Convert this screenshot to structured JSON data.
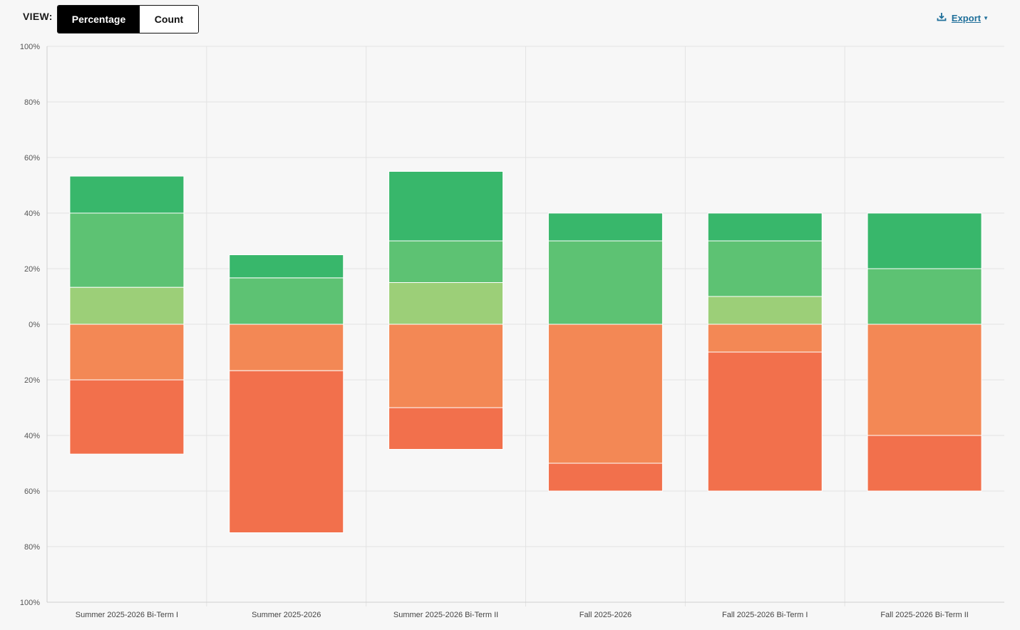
{
  "toolbar": {
    "view_label": "VIEW:",
    "options": [
      "Percentage",
      "Count"
    ],
    "selected": "Percentage",
    "export_label": "Export",
    "export_icon": "download-icon",
    "export_color": "#1f6f9a"
  },
  "chart_data": {
    "type": "bar",
    "stacked": true,
    "diverging": true,
    "title": "",
    "xlabel": "",
    "ylabel": "",
    "ylim": [
      -100,
      100
    ],
    "y_ticks": [
      {
        "value": 100,
        "label": "100%"
      },
      {
        "value": 80,
        "label": "80%"
      },
      {
        "value": 60,
        "label": "60%"
      },
      {
        "value": 40,
        "label": "40%"
      },
      {
        "value": 20,
        "label": "20%"
      },
      {
        "value": 0,
        "label": "0%"
      },
      {
        "value": -20,
        "label": "20%"
      },
      {
        "value": -40,
        "label": "40%"
      },
      {
        "value": -60,
        "label": "60%"
      },
      {
        "value": -80,
        "label": "80%"
      },
      {
        "value": -100,
        "label": "100%"
      }
    ],
    "grid": true,
    "legend": "none",
    "categories": [
      "Summer 2025-2026 Bi-Term I",
      "Summer 2025-2026",
      "Summer 2025-2026 Bi-Term II",
      "Fall 2025-2026",
      "Fall 2025-2026 Bi-Term I",
      "Fall 2025-2026 Bi-Term II"
    ],
    "positive_series": [
      {
        "color": "#9ccf78",
        "values": [
          13.3,
          0,
          15,
          0,
          10,
          0
        ]
      },
      {
        "color": "#5dc273",
        "values": [
          26.7,
          16.7,
          15,
          30,
          20,
          20
        ]
      },
      {
        "color": "#38b76b",
        "values": [
          13.3,
          8.3,
          25,
          10,
          10,
          20
        ]
      }
    ],
    "negative_series": [
      {
        "color": "#f38855",
        "values": [
          20,
          16.7,
          30,
          50,
          10,
          40
        ]
      },
      {
        "color": "#f2704c",
        "values": [
          26.7,
          58.3,
          15,
          10,
          50,
          20
        ]
      }
    ]
  }
}
